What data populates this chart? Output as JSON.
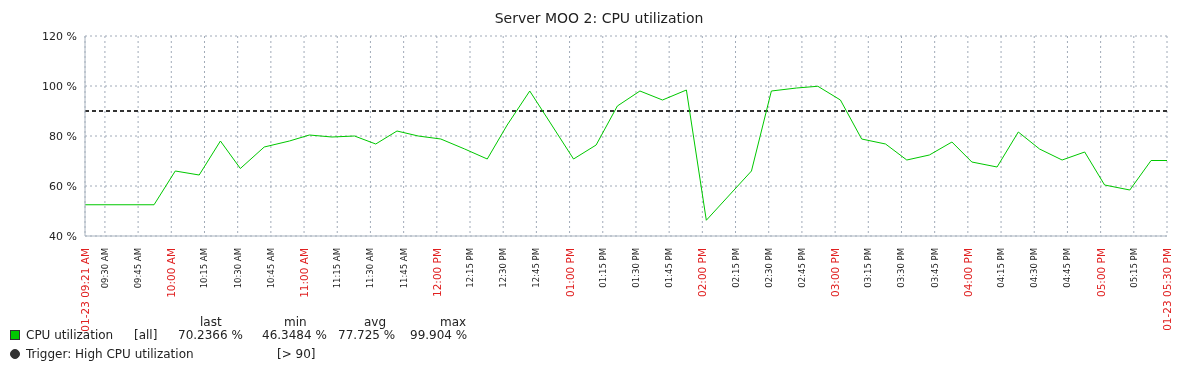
{
  "chart_data": {
    "type": "line",
    "title": "Server MOO 2: CPU utilization",
    "x": [
      9.35,
      9.87,
      10.03,
      10.21,
      10.37,
      10.52,
      10.7,
      10.89,
      11.04,
      11.21,
      11.38,
      11.54,
      11.7,
      11.86,
      12.03,
      12.21,
      12.38,
      12.53,
      12.7,
      12.87,
      13.03,
      13.2,
      13.36,
      13.53,
      13.7,
      13.88,
      14.03,
      14.37,
      14.52,
      14.71,
      14.87,
      15.04,
      15.2,
      15.38,
      15.54,
      15.71,
      15.88,
      16.03,
      16.22,
      16.38,
      16.54,
      16.71,
      16.88,
      17.03,
      17.22,
      17.38,
      17.5
    ],
    "series": [
      {
        "name": "CPU utilization",
        "color": "#00c800",
        "values": [
          52.5,
          52.5,
          66,
          64.4,
          78,
          67,
          75.6,
          78,
          80.4,
          79.6,
          80,
          76.8,
          82,
          80,
          78.8,
          74.8,
          70.8,
          84.4,
          98,
          84,
          70.8,
          76.4,
          92,
          98,
          94.4,
          98.4,
          46.3,
          66,
          98,
          99.2,
          99.9,
          94.4,
          78.8,
          76.8,
          70.4,
          72.4,
          77.6,
          69.6,
          67.6,
          81.6,
          74.8,
          70.4,
          73.6,
          60.4,
          58.4,
          70.2,
          70.2
        ]
      }
    ],
    "xlim": [
      9.35,
      17.5
    ],
    "xticks": [
      {
        "value": 9.35,
        "label": "01-23 09:21 AM"
      },
      {
        "value": 9.5,
        "label": "09:30 AM"
      },
      {
        "value": 9.75,
        "label": "09:45 AM"
      },
      {
        "value": 10,
        "label": "10:00 AM"
      },
      {
        "value": 10.25,
        "label": "10:15 AM"
      },
      {
        "value": 10.5,
        "label": "10:30 AM"
      },
      {
        "value": 10.75,
        "label": "10:45 AM"
      },
      {
        "value": 11,
        "label": "11:00 AM"
      },
      {
        "value": 11.25,
        "label": "11:15 AM"
      },
      {
        "value": 11.5,
        "label": "11:30 AM"
      },
      {
        "value": 11.75,
        "label": "11:45 AM"
      },
      {
        "value": 12,
        "label": "12:00 PM"
      },
      {
        "value": 12.25,
        "label": "12:15 PM"
      },
      {
        "value": 12.5,
        "label": "12:30 PM"
      },
      {
        "value": 12.75,
        "label": "12:45 PM"
      },
      {
        "value": 13,
        "label": "01:00 PM"
      },
      {
        "value": 13.25,
        "label": "01:15 PM"
      },
      {
        "value": 13.5,
        "label": "01:30 PM"
      },
      {
        "value": 13.75,
        "label": "01:45 PM"
      },
      {
        "value": 14,
        "label": "02:00 PM"
      },
      {
        "value": 14.25,
        "label": "02:15 PM"
      },
      {
        "value": 14.5,
        "label": "02:30 PM"
      },
      {
        "value": 14.75,
        "label": "02:45 PM"
      },
      {
        "value": 15,
        "label": "03:00 PM"
      },
      {
        "value": 15.25,
        "label": "03:15 PM"
      },
      {
        "value": 15.5,
        "label": "03:30 PM"
      },
      {
        "value": 15.75,
        "label": "03:45 PM"
      },
      {
        "value": 16,
        "label": "04:00 PM"
      },
      {
        "value": 16.25,
        "label": "04:15 PM"
      },
      {
        "value": 16.5,
        "label": "04:30 PM"
      },
      {
        "value": 16.75,
        "label": "04:45 PM"
      },
      {
        "value": 17,
        "label": "05:00 PM"
      },
      {
        "value": 17.25,
        "label": "05:15 PM"
      },
      {
        "value": 17.5,
        "label": "01-23 05:30 PM"
      }
    ],
    "ylim": [
      40,
      120
    ],
    "yticks": [
      {
        "value": 40,
        "label": "40 %"
      },
      {
        "value": 60,
        "label": "60 %"
      },
      {
        "value": 80,
        "label": "80 %"
      },
      {
        "value": 100,
        "label": "100 %"
      },
      {
        "value": 120,
        "label": "120 %"
      }
    ],
    "ref_lines": [
      {
        "axis": "y",
        "value": 90,
        "label": "Trigger: High CPU utilization",
        "color": "#333333",
        "line_style": "dashed"
      }
    ],
    "annotations": [
      "[all]",
      "last",
      "min",
      "avg",
      "max",
      "70.2366 %",
      "46.3484 %",
      "77.725 %",
      "99.904 %",
      "[> 90]"
    ],
    "grid": true,
    "legend": "bottom",
    "marker": "none",
    "line_style": "solid"
  }
}
